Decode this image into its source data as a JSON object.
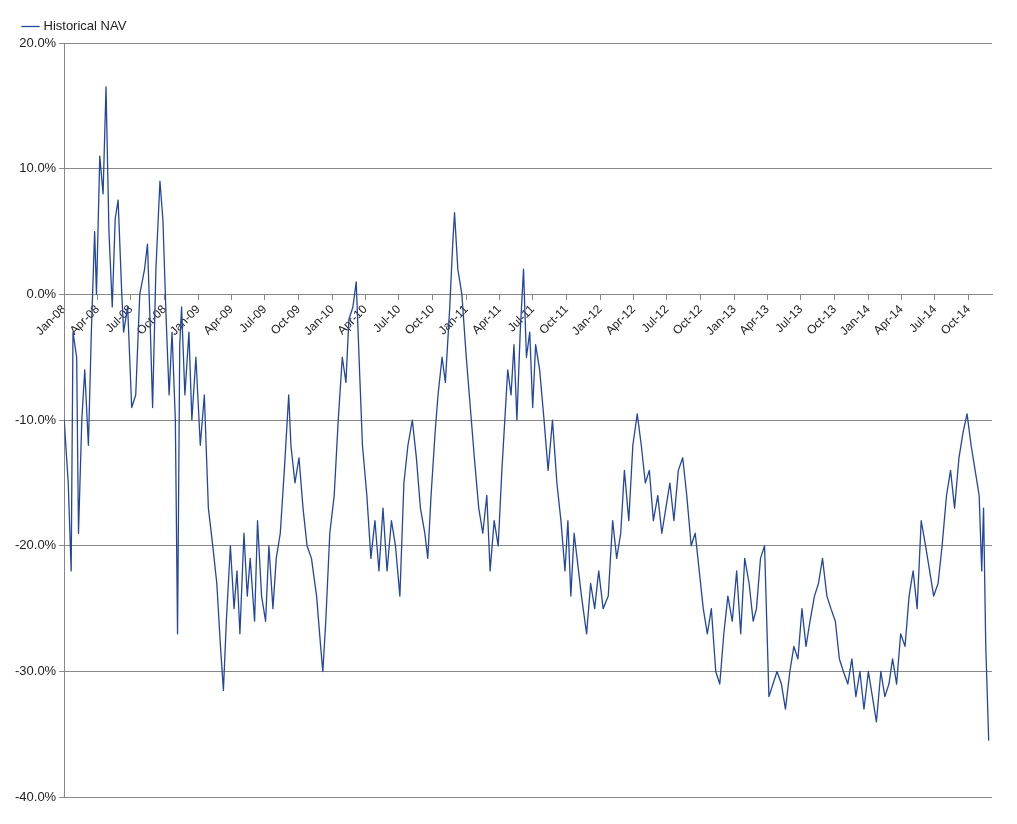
{
  "chart_data": {
    "type": "line",
    "legend": "top left",
    "grid": "y",
    "marker": "none",
    "line_style": "solid",
    "xlim": [
      "2008-01-01",
      "2014-12-04"
    ],
    "xticks": [
      {
        "value": "2008-01-01",
        "label": "Jan-08"
      },
      {
        "value": "2008-04-01",
        "label": "Apr-08"
      },
      {
        "value": "2008-07-01",
        "label": "Jul-08"
      },
      {
        "value": "2008-10-01",
        "label": "Oct-08"
      },
      {
        "value": "2009-01-01",
        "label": "Jan-09"
      },
      {
        "value": "2009-04-01",
        "label": "Apr-09"
      },
      {
        "value": "2009-07-01",
        "label": "Jul-09"
      },
      {
        "value": "2009-10-01",
        "label": "Oct-09"
      },
      {
        "value": "2010-01-01",
        "label": "Jan-10"
      },
      {
        "value": "2010-04-01",
        "label": "Apr-10"
      },
      {
        "value": "2010-07-01",
        "label": "Jul-10"
      },
      {
        "value": "2010-10-01",
        "label": "Oct-10"
      },
      {
        "value": "2011-01-01",
        "label": "Jan-11"
      },
      {
        "value": "2011-04-01",
        "label": "Apr-11"
      },
      {
        "value": "2011-07-01",
        "label": "Jul-11"
      },
      {
        "value": "2011-10-01",
        "label": "Oct-11"
      },
      {
        "value": "2012-01-01",
        "label": "Jan-12"
      },
      {
        "value": "2012-04-01",
        "label": "Apr-12"
      },
      {
        "value": "2012-07-01",
        "label": "Jul-12"
      },
      {
        "value": "2012-10-01",
        "label": "Oct-12"
      },
      {
        "value": "2013-01-01",
        "label": "Jan-13"
      },
      {
        "value": "2013-04-01",
        "label": "Apr-13"
      },
      {
        "value": "2013-07-01",
        "label": "Jul-13"
      },
      {
        "value": "2013-10-01",
        "label": "Oct-13"
      },
      {
        "value": "2014-01-01",
        "label": "Jan-14"
      },
      {
        "value": "2014-04-01",
        "label": "Apr-14"
      },
      {
        "value": "2014-07-01",
        "label": "Jul-14"
      },
      {
        "value": "2014-10-01",
        "label": "Oct-14"
      }
    ],
    "ylim": [
      -40,
      20
    ],
    "yticks": [
      {
        "value": -40,
        "label": "-40.0%"
      },
      {
        "value": -30,
        "label": "-30.0%"
      },
      {
        "value": -20,
        "label": "-20.0%"
      },
      {
        "value": -10,
        "label": "-10.0%"
      },
      {
        "value": 0,
        "label": "0.0%"
      },
      {
        "value": 10,
        "label": "10.0%"
      },
      {
        "value": 20,
        "label": "20.0%"
      }
    ],
    "series": [
      {
        "name": "Historical NAV",
        "color": "#2346a0",
        "x": [
          "2008-01-01",
          "2008-01-12",
          "2008-01-20",
          "2008-01-25",
          "2008-02-04",
          "2008-02-09",
          "2008-02-18",
          "2008-02-26",
          "2008-03-07",
          "2008-03-15",
          "2008-03-24",
          "2008-03-29",
          "2008-04-07",
          "2008-04-16",
          "2008-04-24",
          "2008-05-02",
          "2008-05-11",
          "2008-05-19",
          "2008-05-27",
          "2008-06-06",
          "2008-06-11",
          "2008-06-22",
          "2008-07-03",
          "2008-07-14",
          "2008-07-25",
          "2008-08-07",
          "2008-08-15",
          "2008-08-23",
          "2008-08-29",
          "2008-09-07",
          "2008-09-18",
          "2008-09-26",
          "2008-10-05",
          "2008-10-13",
          "2008-10-21",
          "2008-10-30",
          "2008-11-05",
          "2008-11-11",
          "2008-11-16",
          "2008-11-25",
          "2008-12-06",
          "2008-12-14",
          "2008-12-25",
          "2009-01-06",
          "2009-01-17",
          "2009-01-28",
          "2009-02-09",
          "2009-02-20",
          "2009-03-02",
          "2009-03-10",
          "2009-03-18",
          "2009-03-29",
          "2009-04-08",
          "2009-04-16",
          "2009-04-24",
          "2009-05-05",
          "2009-05-14",
          "2009-05-22",
          "2009-06-03",
          "2009-06-11",
          "2009-06-22",
          "2009-07-03",
          "2009-07-12",
          "2009-07-23",
          "2009-08-01",
          "2009-08-12",
          "2009-08-23",
          "2009-09-04",
          "2009-09-10",
          "2009-09-21",
          "2009-10-02",
          "2009-10-13",
          "2009-10-24",
          "2009-11-05",
          "2009-11-19",
          "2009-11-30",
          "2009-12-06",
          "2009-12-14",
          "2009-12-25",
          "2010-01-06",
          "2010-01-17",
          "2010-01-28",
          "2010-02-07",
          "2010-02-15",
          "2010-02-26",
          "2010-03-07",
          "2010-03-16",
          "2010-03-24",
          "2010-04-05",
          "2010-04-16",
          "2010-04-27",
          "2010-05-08",
          "2010-05-19",
          "2010-05-30",
          "2010-06-11",
          "2010-06-22",
          "2010-07-04",
          "2010-07-15",
          "2010-07-26",
          "2010-08-07",
          "2010-08-18",
          "2010-08-29",
          "2010-09-10",
          "2010-09-18",
          "2010-09-27",
          "2010-10-08",
          "2010-10-16",
          "2010-10-27",
          "2010-11-05",
          "2010-11-17",
          "2010-11-25",
          "2010-11-30",
          "2010-12-09",
          "2010-12-20",
          "2011-01-01",
          "2011-01-12",
          "2011-01-23",
          "2011-02-04",
          "2011-02-15",
          "2011-02-26",
          "2011-03-07",
          "2011-03-18",
          "2011-03-29",
          "2011-04-08",
          "2011-04-16",
          "2011-04-24",
          "2011-05-03",
          "2011-05-11",
          "2011-05-19",
          "2011-05-28",
          "2011-06-06",
          "2011-06-14",
          "2011-06-23",
          "2011-07-01",
          "2011-07-09",
          "2011-07-20",
          "2011-08-01",
          "2011-08-12",
          "2011-08-24",
          "2011-09-05",
          "2011-09-16",
          "2011-09-27",
          "2011-10-05",
          "2011-10-13",
          "2011-10-22",
          "2011-10-30",
          "2011-11-11",
          "2011-11-25",
          "2011-12-06",
          "2011-12-17",
          "2011-12-28",
          "2012-01-09",
          "2012-01-23",
          "2012-02-04",
          "2012-02-15",
          "2012-02-26",
          "2012-03-07",
          "2012-03-19",
          "2012-03-30",
          "2012-04-11",
          "2012-04-22",
          "2012-05-03",
          "2012-05-14",
          "2012-05-25",
          "2012-06-06",
          "2012-06-17",
          "2012-06-28",
          "2012-07-09",
          "2012-07-20",
          "2012-08-01",
          "2012-08-13",
          "2012-08-24",
          "2012-09-05",
          "2012-09-16",
          "2012-09-27",
          "2012-10-08",
          "2012-10-19",
          "2012-10-30",
          "2012-11-11",
          "2012-11-22",
          "2012-12-03",
          "2012-12-14",
          "2012-12-26",
          "2013-01-07",
          "2013-01-18",
          "2013-01-29",
          "2013-02-10",
          "2013-02-21",
          "2013-03-02",
          "2013-03-13",
          "2013-03-24",
          "2013-04-05",
          "2013-04-16",
          "2013-04-27",
          "2013-05-09",
          "2013-05-20",
          "2013-06-01",
          "2013-06-12",
          "2013-06-23",
          "2013-07-04",
          "2013-07-15",
          "2013-07-26",
          "2013-08-07",
          "2013-08-18",
          "2013-08-29",
          "2013-09-10",
          "2013-09-21",
          "2013-10-03",
          "2013-10-14",
          "2013-10-25",
          "2013-11-06",
          "2013-11-17",
          "2013-11-28",
          "2013-12-09",
          "2013-12-20",
          "2014-01-01",
          "2014-01-12",
          "2014-01-23",
          "2014-02-04",
          "2014-02-15",
          "2014-02-26",
          "2014-03-08",
          "2014-03-19",
          "2014-03-30",
          "2014-04-11",
          "2014-04-22",
          "2014-05-03",
          "2014-05-14",
          "2014-05-25",
          "2014-06-06",
          "2014-06-17",
          "2014-06-28",
          "2014-07-10",
          "2014-07-21",
          "2014-08-02",
          "2014-08-13",
          "2014-08-24",
          "2014-09-05",
          "2014-09-16",
          "2014-09-27",
          "2014-10-08",
          "2014-10-19",
          "2014-10-30",
          "2014-11-06",
          "2014-11-11",
          "2014-11-17",
          "2014-11-25"
        ],
        "values": [
          -10,
          -15,
          -22,
          -3,
          -5,
          -19,
          -10,
          -6,
          -12,
          -3,
          5,
          0,
          11,
          8,
          16.5,
          5,
          -1,
          6,
          7.5,
          0,
          -3,
          -1,
          -9,
          -8,
          0,
          2,
          4,
          -3,
          -9,
          2,
          9,
          6,
          -2,
          -8,
          -3,
          -10,
          -27,
          -4,
          -1,
          -8,
          -3,
          -10,
          -5,
          -12,
          -8,
          -17,
          -20,
          -23,
          -28,
          -31.5,
          -26,
          -20,
          -25,
          -22,
          -27,
          -19,
          -24,
          -21,
          -26,
          -18,
          -24,
          -26,
          -20,
          -25,
          -21,
          -19,
          -14,
          -8,
          -12,
          -15,
          -13,
          -17,
          -20,
          -21,
          -24,
          -28,
          -30,
          -26,
          -19,
          -16,
          -10,
          -5,
          -7,
          -2,
          -1,
          1,
          -6,
          -12,
          -16,
          -21,
          -18,
          -22,
          -17,
          -22,
          -18,
          -20,
          -24,
          -15,
          -12,
          -10,
          -13,
          -17,
          -19,
          -21,
          -16,
          -11,
          -8,
          -5,
          -7,
          -1,
          4,
          6.5,
          2,
          0,
          -5,
          -9,
          -13,
          -17,
          -19,
          -16,
          -22,
          -18,
          -20,
          -14,
          -10,
          -6,
          -8,
          -4,
          -10,
          -3,
          2,
          -5,
          -3,
          -9,
          -4,
          -6,
          -10,
          -14,
          -10,
          -15,
          -18,
          -22,
          -18,
          -24,
          -19,
          -21,
          -24,
          -27,
          -23,
          -25,
          -22,
          -25,
          -24,
          -18,
          -21,
          -19,
          -14,
          -18,
          -12,
          -9.5,
          -12,
          -15,
          -14,
          -18,
          -16,
          -19,
          -17,
          -15,
          -18,
          -14,
          -13,
          -16,
          -20,
          -19,
          -22,
          -25,
          -27,
          -25,
          -30,
          -31,
          -27,
          -24,
          -26,
          -22,
          -27,
          -21,
          -23,
          -26,
          -25,
          -21,
          -20,
          -32,
          -31,
          -30,
          -31,
          -33,
          -30,
          -28,
          -29,
          -25,
          -28,
          -26,
          -24,
          -23,
          -21,
          -24,
          -25,
          -26,
          -29,
          -30,
          -31,
          -29,
          -32,
          -30,
          -33,
          -30,
          -32,
          -34,
          -30,
          -32,
          -31,
          -29,
          -31,
          -27,
          -28,
          -24,
          -22,
          -25,
          -18,
          -20,
          -22,
          -24,
          -23,
          -20,
          -16,
          -14,
          -17,
          -13,
          -11,
          -9.5,
          -12,
          -14,
          -16,
          -22,
          -17,
          -28,
          -35.5
        ]
      }
    ]
  }
}
